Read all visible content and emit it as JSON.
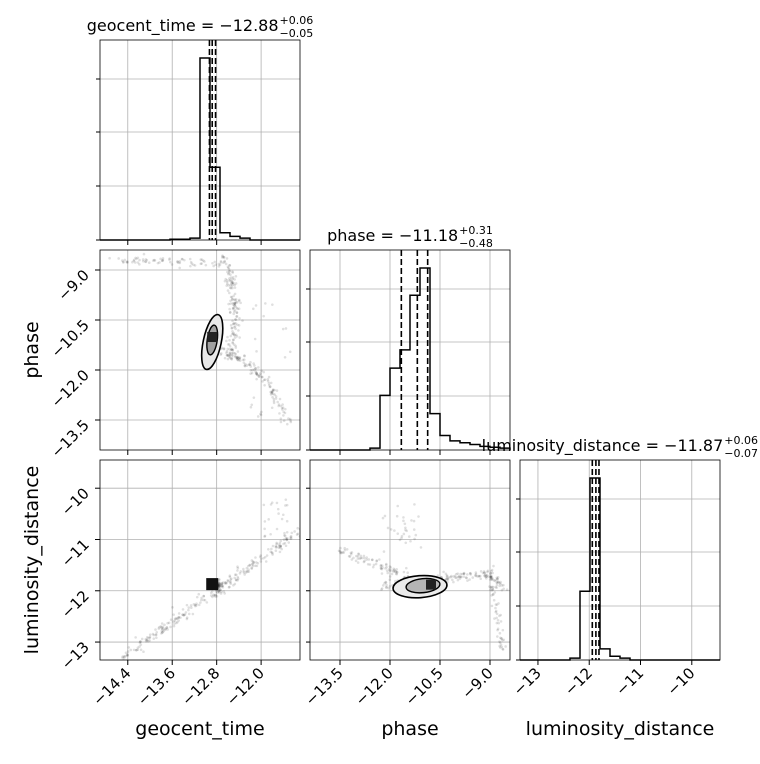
{
  "chart_data": {
    "type": "scatter",
    "subtype": "corner-plot",
    "parameters": [
      "geocent_time",
      "phase",
      "luminosity_distance"
    ],
    "axis_labels": [
      "geocent_time",
      "phase",
      "luminosity_distance"
    ],
    "ranges": {
      "geocent_time": [
        -14.9,
        -11.3
      ],
      "phase": [
        -14.4,
        -8.4
      ],
      "luminosity_distance": [
        -13.35,
        -9.45
      ]
    },
    "ticks": {
      "geocent_time": [
        {
          "value": -14.4,
          "label": "−14.4"
        },
        {
          "value": -13.6,
          "label": "−13.6"
        },
        {
          "value": -12.8,
          "label": "−12.8"
        },
        {
          "value": -12.0,
          "label": "−12.0"
        }
      ],
      "phase": [
        {
          "value": -13.5,
          "label": "−13.5"
        },
        {
          "value": -12.0,
          "label": "−12.0"
        },
        {
          "value": -10.5,
          "label": "−10.5"
        },
        {
          "value": -9.0,
          "label": "−9.0"
        }
      ],
      "luminosity_distance": [
        {
          "value": -13,
          "label": "−13"
        },
        {
          "value": -12,
          "label": "−12"
        },
        {
          "value": -11,
          "label": "−11"
        },
        {
          "value": -10,
          "label": "−10"
        }
      ]
    },
    "titles": [
      {
        "text": "geocent_time = −12.88",
        "plus": "+0.06",
        "minus": "−0.05"
      },
      {
        "text": "phase = −11.18",
        "plus": "+0.31",
        "minus": "−0.48"
      },
      {
        "text": "luminosity_distance = −11.87",
        "plus": "+0.06",
        "minus": "−0.07"
      }
    ],
    "quantiles": {
      "geocent_time": [
        -12.93,
        -12.88,
        -12.82
      ],
      "phase": [
        -11.66,
        -11.18,
        -10.87
      ],
      "luminosity_distance": [
        -11.94,
        -11.87,
        -11.81
      ]
    },
    "histograms": {
      "geocent_time": {
        "edges": [
          -14.9,
          -14.72,
          -14.54,
          -14.36,
          -14.18,
          -14.0,
          -13.82,
          -13.64,
          -13.46,
          -13.28,
          -13.1,
          -12.92,
          -12.74,
          -12.56,
          -12.38,
          -12.2,
          -12.02,
          -11.84,
          -11.66,
          -11.48,
          -11.3
        ],
        "counts": [
          0,
          0,
          0,
          0,
          0,
          0,
          0,
          0.004,
          0.004,
          0.01,
          1.0,
          0.4,
          0.04,
          0.02,
          0.01,
          0,
          0,
          0,
          0,
          0
        ]
      },
      "phase": {
        "edges": [
          -14.4,
          -14.1,
          -13.8,
          -13.5,
          -13.2,
          -12.9,
          -12.6,
          -12.3,
          -12.0,
          -11.7,
          -11.4,
          -11.1,
          -10.8,
          -10.5,
          -10.2,
          -9.9,
          -9.6,
          -9.3,
          -9.0,
          -8.7,
          -8.4
        ],
        "counts": [
          0,
          0,
          0,
          0,
          0,
          0,
          0.01,
          0.3,
          0.45,
          0.55,
          0.85,
          1.0,
          0.2,
          0.08,
          0.05,
          0.04,
          0.03,
          0.02,
          0.015,
          0.01
        ]
      },
      "luminosity_distance": {
        "edges": [
          -13.35,
          -13.155,
          -12.96,
          -12.765,
          -12.57,
          -12.375,
          -12.18,
          -11.985,
          -11.79,
          -11.595,
          -11.4,
          -11.205,
          -11.01,
          -10.815,
          -10.62,
          -10.425,
          -10.23,
          -10.035,
          -9.84,
          -9.645,
          -9.45
        ],
        "counts": [
          0,
          0,
          0,
          0,
          0,
          0.01,
          0.37,
          0.98,
          0.06,
          0.02,
          0.01,
          0,
          0,
          0,
          0,
          0,
          0,
          0,
          0,
          0
        ]
      }
    },
    "grid": true
  }
}
